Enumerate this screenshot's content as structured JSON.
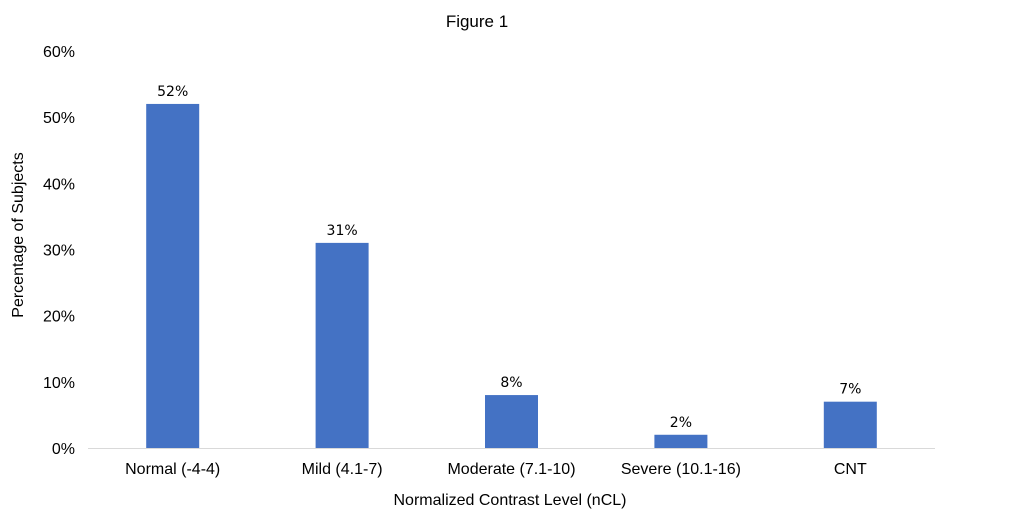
{
  "chart_data": {
    "type": "bar",
    "title": "Figure 1",
    "xlabel": "Normalized Contrast Level (nCL)",
    "ylabel": "Percentage of Subjects",
    "categories": [
      "Normal (-4-4)",
      "Mild (4.1-7)",
      "Moderate (7.1-10)",
      "Severe (10.1-16)",
      "CNT"
    ],
    "values": [
      52,
      31,
      8,
      2,
      7
    ],
    "data_labels": [
      "52%",
      "31%",
      "8%",
      "2%",
      "7%"
    ],
    "ylim": [
      0,
      60
    ],
    "yticks": [
      0,
      10,
      20,
      30,
      40,
      50,
      60
    ],
    "ytick_labels": [
      "0%",
      "10%",
      "20%",
      "30%",
      "40%",
      "50%",
      "60%"
    ],
    "grid": false,
    "legend": "none",
    "bar_color": "#4472c4"
  }
}
